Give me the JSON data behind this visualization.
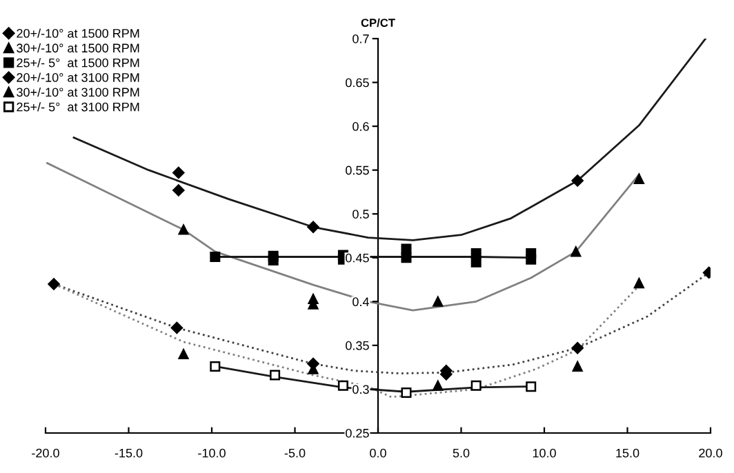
{
  "chart_data": {
    "type": "scatter",
    "ylabel": "CP/CT",
    "xlim": [
      -20,
      20
    ],
    "ylim": [
      0.25,
      0.7
    ],
    "xticks": [
      {
        "value": -20,
        "label": "-20.0"
      },
      {
        "value": -15,
        "label": "-15.0"
      },
      {
        "value": -10,
        "label": "-10.0"
      },
      {
        "value": -5,
        "label": "-5.0"
      },
      {
        "value": 0,
        "label": "0.0"
      },
      {
        "value": 5,
        "label": "5.0"
      },
      {
        "value": 10,
        "label": "10.0"
      },
      {
        "value": 15,
        "label": "15.0"
      },
      {
        "value": 20,
        "label": "20.0"
      }
    ],
    "yticks": [
      0.25,
      0.3,
      0.35,
      0.4,
      0.45,
      0.5,
      0.55,
      0.6,
      0.65,
      0.7
    ],
    "grid": false,
    "legend": "top left",
    "series": [
      {
        "name": "20+/-10° at 1500 RPM",
        "marker": "diamond",
        "color": "#000000",
        "x": [
          -12.0,
          -12.0,
          -3.9,
          12.0
        ],
        "values": [
          0.547,
          0.527,
          0.485,
          0.538
        ]
      },
      {
        "name": "30+/-10° at 1500 RPM",
        "marker": "triangle",
        "color": "#000000",
        "x": [
          -11.7,
          -3.9,
          -3.9,
          3.6,
          11.9,
          15.7
        ],
        "values": [
          0.482,
          0.403,
          0.397,
          0.4,
          0.457,
          0.54
        ]
      },
      {
        "name": "25+/- 5°  at 1500 RPM",
        "marker": "square",
        "color": "#000000",
        "x": [
          -9.8,
          -6.3,
          -6.3,
          -2.1,
          -2.1,
          1.7,
          1.7,
          5.9,
          5.9,
          9.2,
          9.2
        ],
        "values": [
          0.451,
          0.452,
          0.447,
          0.453,
          0.448,
          0.46,
          0.45,
          0.455,
          0.445,
          0.455,
          0.448
        ]
      },
      {
        "name": "20+/-10° at 3100 RPM",
        "marker": "diamond",
        "color": "#000000",
        "x": [
          -19.5,
          -12.1,
          -3.9,
          4.1,
          4.1,
          12.0,
          19.9
        ],
        "values": [
          0.42,
          0.37,
          0.329,
          0.321,
          0.317,
          0.347,
          0.433
        ]
      },
      {
        "name": "30+/-10° at 3100 RPM",
        "marker": "triangle",
        "color": "#000000",
        "x": [
          -11.7,
          -3.9,
          3.6,
          12.0,
          15.7
        ],
        "values": [
          0.34,
          0.323,
          0.304,
          0.326,
          0.421
        ]
      },
      {
        "name": "25+/- 5°  at 3100 RPM",
        "marker": "square",
        "color": "#ffffff",
        "x": [
          -9.8,
          -6.2,
          -2.1,
          1.7,
          5.9,
          9.2
        ],
        "values": [
          0.326,
          0.316,
          0.304,
          0.296,
          0.304,
          0.303
        ]
      },
      {
        "type": "line",
        "marker": "none",
        "line_style": "solid",
        "color": "#1a1a1a",
        "x": [
          -18.3,
          -13.8,
          -9.0,
          -3.9,
          -0.6,
          2.1,
          5.0,
          8.0,
          12.0,
          15.7,
          19.7
        ],
        "values": [
          0.587,
          0.55,
          0.517,
          0.485,
          0.473,
          0.47,
          0.476,
          0.495,
          0.538,
          0.601,
          0.7
        ]
      },
      {
        "type": "line",
        "marker": "none",
        "line_style": "solid",
        "color": "#808080",
        "x": [
          -19.9,
          -11.7,
          -9.8,
          -3.9,
          -0.6,
          2.1,
          5.9,
          9.2,
          11.9,
          15.7
        ],
        "values": [
          0.558,
          0.482,
          0.457,
          0.419,
          0.4,
          0.39,
          0.4,
          0.427,
          0.457,
          0.545
        ]
      },
      {
        "type": "line",
        "marker": "none",
        "line_style": "solid",
        "color": "#1a1a1a",
        "x": [
          -9.8,
          -2.1,
          5.9,
          9.2
        ],
        "values": [
          0.451,
          0.451,
          0.451,
          0.45
        ]
      },
      {
        "type": "line",
        "marker": "none",
        "line_style": "dotted",
        "color": "#404040",
        "x": [
          -19.5,
          -12.1,
          -3.9,
          -1.4,
          1.3,
          4.1,
          8.1,
          12.0,
          16.2,
          19.9
        ],
        "values": [
          0.42,
          0.37,
          0.329,
          0.321,
          0.318,
          0.319,
          0.328,
          0.347,
          0.383,
          0.433
        ]
      },
      {
        "type": "line",
        "marker": "none",
        "line_style": "dotted",
        "color": "#808080",
        "x": [
          -19.5,
          -11.7,
          -3.9,
          -0.6,
          0.8,
          5.9,
          9.5,
          12.0,
          15.7
        ],
        "values": [
          0.42,
          0.354,
          0.316,
          0.303,
          0.291,
          0.3,
          0.323,
          0.345,
          0.418
        ]
      },
      {
        "type": "line",
        "marker": "none",
        "line_style": "solid",
        "color": "#1a1a1a",
        "x": [
          -9.8,
          -6.2,
          -2.1,
          1.7,
          5.9,
          9.2
        ],
        "values": [
          0.326,
          0.314,
          0.302,
          0.297,
          0.302,
          0.303
        ]
      }
    ]
  }
}
